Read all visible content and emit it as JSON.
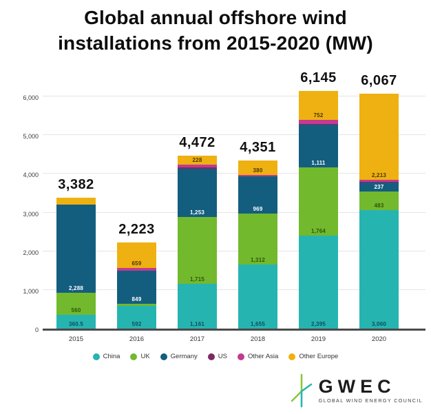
{
  "title": {
    "line1": "Global annual offshore wind",
    "line2": "installations from 2015-2020 (MW)"
  },
  "chart_data": {
    "type": "bar",
    "stacked": true,
    "unit": "MW",
    "title": "Global annual offshore wind installations from 2015-2020 (MW)",
    "grid": true,
    "legend_position": "bottom",
    "ylim": [
      0,
      6000
    ],
    "ytick_values": [
      0,
      1000,
      2000,
      3000,
      4000,
      5000,
      6000
    ],
    "ytick_labels": [
      "0",
      "1,000",
      "2,000",
      "3,000",
      "4,000",
      "5,000",
      "6,000"
    ],
    "categories": [
      "2015",
      "2016",
      "2017",
      "2018",
      "2019",
      "2020"
    ],
    "totals": [
      3382,
      2223,
      4472,
      4351,
      6145,
      6067
    ],
    "total_labels": [
      "3,382",
      "2,223",
      "4,472",
      "4,351",
      "6,145",
      "6,067"
    ],
    "series": [
      {
        "name": "China",
        "color": "#26b4b1",
        "label_color": "#0d4e57",
        "values": [
          360.5,
          592,
          1161,
          1655,
          2395,
          3060
        ],
        "labels": [
          "360.5",
          "592",
          "1,161",
          "1,655",
          "2,395",
          "3,060"
        ]
      },
      {
        "name": "UK",
        "color": "#72b92e",
        "label_color": "#2d5708",
        "values": [
          560,
          54,
          1715,
          1312,
          1764,
          483
        ],
        "labels": [
          "560",
          null,
          "1,715",
          "1,312",
          "1,764",
          "483"
        ]
      },
      {
        "name": "Germany",
        "color": "#135e7f",
        "label_color": "#ffffff",
        "values": [
          2288,
          849,
          1253,
          969,
          1111,
          237
        ],
        "labels": [
          "2,288",
          "849",
          "1,253",
          "969",
          "1,111",
          "237"
        ]
      },
      {
        "name": "US",
        "color": "#7d2a62",
        "label_color": "#ffffff",
        "values": [
          0,
          0,
          40,
          0,
          12,
          12
        ],
        "labels": [
          null,
          null,
          null,
          null,
          null,
          null
        ]
      },
      {
        "name": "Other Asia",
        "color": "#c23a92",
        "label_color": "#ffffff",
        "values": [
          0,
          69,
          75,
          35,
          111,
          62
        ],
        "labels": [
          null,
          null,
          null,
          null,
          null,
          null
        ]
      },
      {
        "name": "Other Europe",
        "color": "#eeb111",
        "label_color": "#4a3500",
        "values": [
          173.5,
          659,
          228,
          380,
          752,
          2213
        ],
        "labels": [
          null,
          "659",
          "228",
          "380",
          "752",
          "2,213"
        ]
      }
    ]
  },
  "legend": {
    "items": [
      "China",
      "UK",
      "Germany",
      "US",
      "Other Asia",
      "Other Europe"
    ]
  },
  "logo": {
    "name": "GWEC",
    "subtitle": "GLOBAL WIND ENERGY COUNCIL"
  },
  "colors": {
    "china": "#26b4b1",
    "uk": "#72b92e",
    "germany": "#135e7f",
    "us": "#7d2a62",
    "other_asia": "#c23a92",
    "other_europe": "#eeb111",
    "axis_line": "#4a4a4a",
    "gridline": "#e4e4e4"
  }
}
